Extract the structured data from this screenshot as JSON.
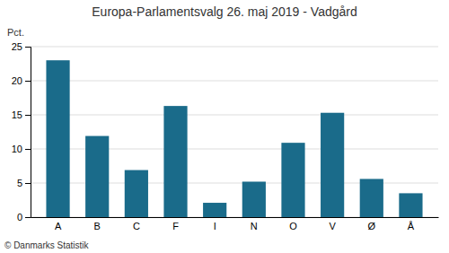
{
  "chart_data": {
    "type": "bar",
    "title": "Europa-Parlamentsvalg 26. maj 2019 - Vadgård",
    "categories": [
      "A",
      "B",
      "C",
      "F",
      "I",
      "N",
      "O",
      "V",
      "Ø",
      "Å"
    ],
    "values": [
      23.0,
      11.9,
      6.9,
      16.3,
      2.1,
      5.2,
      10.9,
      15.3,
      5.6,
      3.5
    ],
    "color": "#1a6b8a",
    "ylim": [
      0,
      25
    ],
    "yticks": [
      0,
      5,
      10,
      15,
      20,
      25
    ],
    "ylabel": "Pct.",
    "footer": "© Danmarks Statistik",
    "grid": true
  }
}
